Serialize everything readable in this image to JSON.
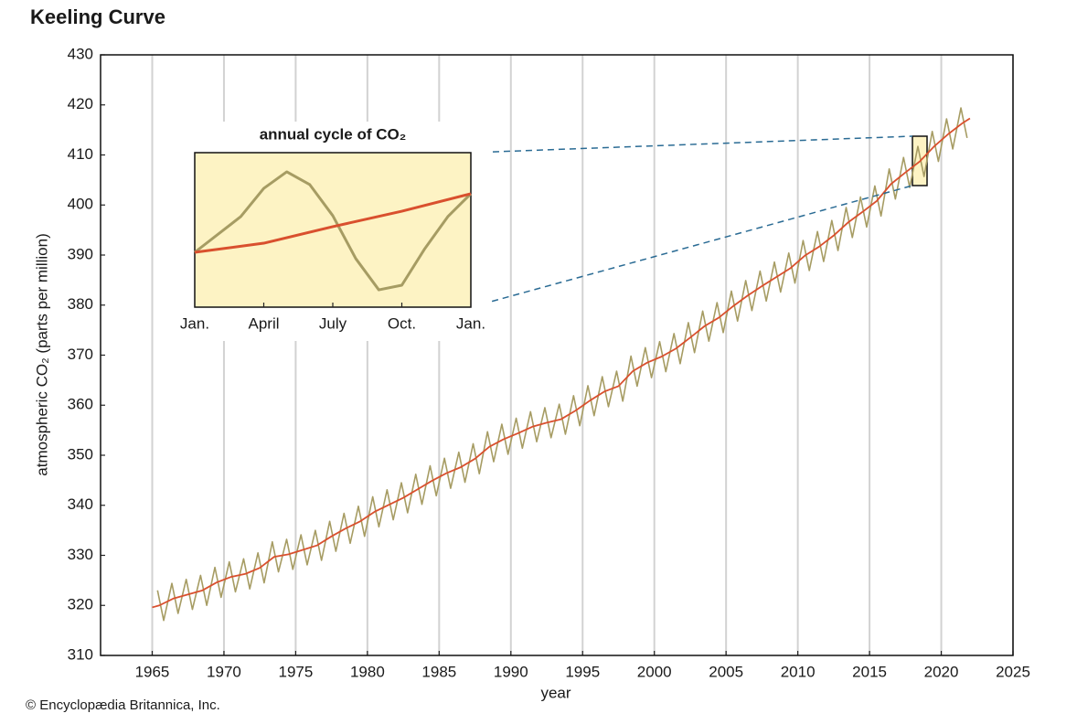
{
  "chart_data": [
    {
      "type": "line",
      "title": "Keeling Curve",
      "xlabel": "year",
      "ylabel": "atmospheric CO₂ (parts per million)",
      "credit": "© Encyclopædia Britannica, Inc.",
      "xlim": [
        1961.4,
        2025
      ],
      "ylim": [
        310,
        430
      ],
      "xticks": [
        1965,
        1970,
        1975,
        1980,
        1985,
        1990,
        1995,
        2000,
        2005,
        2010,
        2015,
        2020,
        2025
      ],
      "yticks": [
        310,
        320,
        330,
        340,
        350,
        360,
        370,
        380,
        390,
        400,
        410,
        420,
        430
      ],
      "grid": true,
      "series": [
        {
          "color": "#a69c63",
          "x": [
            1965.37,
            1965.8,
            1966.37,
            1966.8,
            1967.37,
            1967.8,
            1968.37,
            1968.8,
            1969.37,
            1969.8,
            1970.37,
            1970.8,
            1971.37,
            1971.8,
            1972.37,
            1972.8,
            1973.37,
            1973.8,
            1974.37,
            1974.8,
            1975.37,
            1975.8,
            1976.37,
            1976.8,
            1977.37,
            1977.8,
            1978.37,
            1978.8,
            1979.37,
            1979.8,
            1980.37,
            1980.8,
            1981.37,
            1981.8,
            1982.37,
            1982.8,
            1983.37,
            1983.8,
            1984.37,
            1984.8,
            1985.37,
            1985.8,
            1986.37,
            1986.8,
            1987.37,
            1987.8,
            1988.37,
            1988.8,
            1989.37,
            1989.8,
            1990.37,
            1990.8,
            1991.37,
            1991.8,
            1992.37,
            1992.8,
            1993.37,
            1993.8,
            1994.37,
            1994.8,
            1995.37,
            1995.8,
            1996.37,
            1996.8,
            1997.37,
            1997.8,
            1998.37,
            1998.8,
            1999.37,
            1999.8,
            2000.37,
            2000.8,
            2001.37,
            2001.8,
            2002.37,
            2002.8,
            2003.37,
            2003.8,
            2004.37,
            2004.8,
            2005.37,
            2005.8,
            2006.37,
            2006.8,
            2007.37,
            2007.8,
            2008.37,
            2008.8,
            2009.37,
            2009.8,
            2010.37,
            2010.8,
            2011.37,
            2011.8,
            2012.37,
            2012.8,
            2013.37,
            2013.8,
            2014.37,
            2014.8,
            2015.37,
            2015.8,
            2016.37,
            2016.8,
            2017.37,
            2017.8,
            2018.37,
            2018.8,
            2019.37,
            2019.8,
            2020.37,
            2020.8,
            2021.37,
            2021.8
          ],
          "values": [
            323.0,
            317.0,
            324.4,
            318.4,
            325.2,
            319.2,
            326.0,
            320.0,
            327.6,
            321.6,
            328.7,
            322.7,
            329.3,
            323.3,
            330.5,
            324.5,
            332.7,
            326.7,
            333.2,
            327.2,
            334.1,
            328.1,
            335.0,
            329.0,
            336.8,
            330.8,
            338.4,
            332.4,
            339.8,
            333.8,
            341.7,
            335.7,
            343.1,
            337.1,
            344.5,
            338.5,
            346.2,
            340.2,
            347.9,
            341.9,
            349.4,
            343.4,
            350.6,
            344.6,
            352.3,
            346.3,
            354.7,
            348.7,
            356.2,
            350.2,
            357.4,
            351.4,
            358.7,
            352.7,
            359.5,
            353.5,
            360.2,
            354.2,
            361.9,
            355.9,
            363.9,
            357.9,
            365.7,
            359.7,
            366.8,
            360.8,
            369.8,
            363.8,
            371.5,
            365.5,
            372.7,
            366.7,
            374.3,
            368.3,
            376.5,
            370.5,
            378.8,
            372.8,
            380.5,
            374.5,
            382.8,
            376.8,
            384.9,
            378.9,
            386.8,
            380.8,
            388.6,
            382.6,
            390.4,
            384.4,
            392.9,
            386.9,
            394.7,
            388.7,
            396.9,
            390.9,
            399.5,
            393.5,
            401.6,
            395.6,
            403.8,
            397.8,
            407.2,
            401.2,
            409.5,
            403.5,
            411.7,
            405.7,
            414.7,
            408.7,
            417.2,
            411.2,
            419.4,
            413.4
          ]
        },
        {
          "color": "#d9502e",
          "x": [
            1965.0,
            1965.5,
            1966.5,
            1967.5,
            1968.5,
            1969.5,
            1970.5,
            1971.5,
            1972.5,
            1973.5,
            1974.5,
            1975.5,
            1976.5,
            1977.5,
            1978.5,
            1979.5,
            1980.5,
            1981.5,
            1982.5,
            1983.5,
            1984.5,
            1985.5,
            1986.5,
            1987.5,
            1988.5,
            1989.5,
            1990.5,
            1991.5,
            1992.5,
            1993.5,
            1994.5,
            1995.5,
            1996.5,
            1997.5,
            1998.5,
            1999.5,
            2000.5,
            2001.5,
            2002.5,
            2003.5,
            2004.5,
            2005.5,
            2006.5,
            2007.5,
            2008.5,
            2009.5,
            2010.5,
            2011.5,
            2012.5,
            2013.5,
            2014.5,
            2015.5,
            2016.5,
            2017.5,
            2018.5,
            2019.5,
            2020.5,
            2021.5,
            2022.0
          ],
          "values": [
            319.6,
            320.0,
            321.4,
            322.2,
            323.0,
            324.6,
            325.7,
            326.3,
            327.5,
            329.7,
            330.2,
            331.1,
            332.0,
            333.8,
            335.4,
            336.8,
            338.7,
            340.1,
            341.5,
            343.2,
            344.9,
            346.4,
            347.6,
            349.3,
            351.7,
            353.2,
            354.4,
            355.7,
            356.5,
            357.2,
            358.9,
            360.9,
            362.7,
            363.8,
            366.8,
            368.5,
            369.7,
            371.3,
            373.5,
            375.8,
            377.5,
            379.8,
            381.9,
            383.8,
            385.6,
            387.4,
            389.9,
            391.7,
            393.9,
            396.5,
            398.6,
            400.8,
            404.2,
            406.5,
            408.7,
            411.7,
            414.2,
            416.4,
            417.3
          ]
        }
      ]
    },
    {
      "type": "line",
      "title": "annual cycle of CO₂",
      "xlim": [
        0,
        12
      ],
      "ylim": [
        0,
        100
      ],
      "xticks": [
        {
          "value": 0,
          "label": "Jan."
        },
        {
          "value": 3,
          "label": "April"
        },
        {
          "value": 6,
          "label": "July"
        },
        {
          "value": 9,
          "label": "Oct."
        },
        {
          "value": 12,
          "label": "Jan."
        }
      ],
      "series": [
        {
          "color": "#a69c63",
          "x": [
            0,
            2,
            3,
            4,
            5,
            6,
            7,
            8,
            9,
            10,
            11,
            12
          ],
          "values": [
            35.5,
            58.6,
            76.9,
            87.6,
            79.3,
            59.2,
            31.4,
            11.2,
            14.2,
            37.9,
            58.6,
            73.4
          ]
        },
        {
          "color": "#d9502e",
          "x": [
            0,
            3,
            6,
            9,
            12
          ],
          "values": [
            35.5,
            41.4,
            52.1,
            62.1,
            73.4
          ]
        }
      ]
    }
  ]
}
